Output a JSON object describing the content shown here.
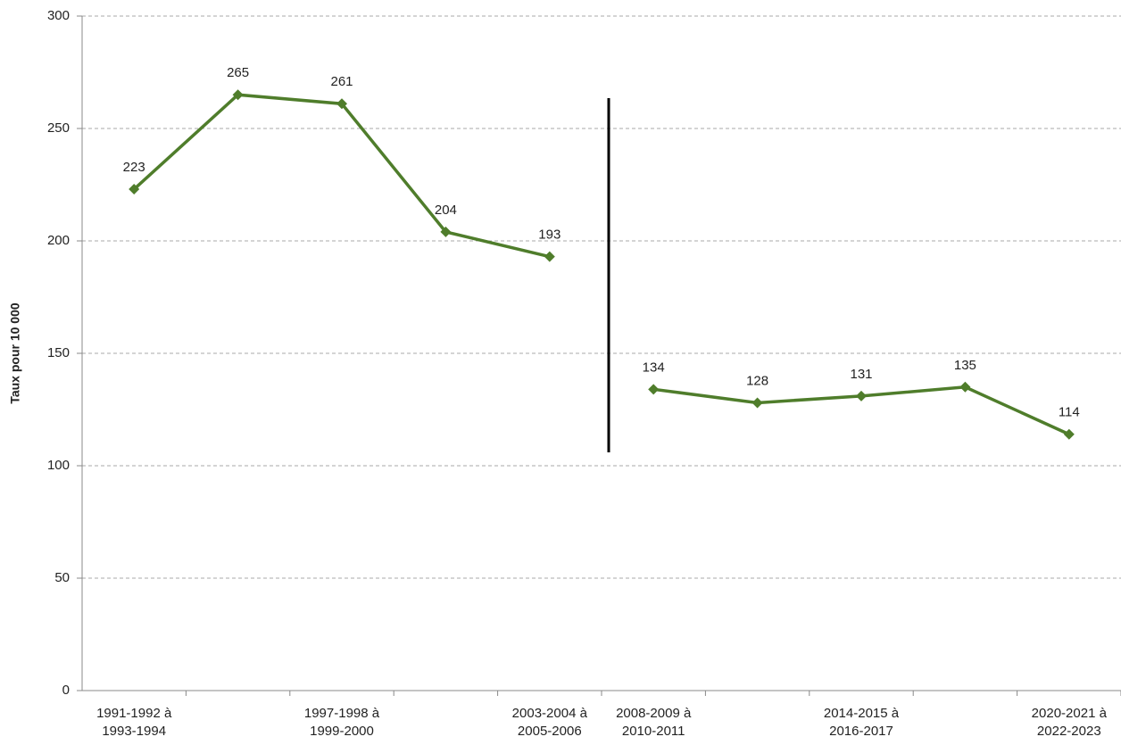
{
  "chart_data": {
    "type": "line",
    "y_label": "Taux pour 10 000",
    "categories": [
      "1991-1992 à\n1993-1994",
      null,
      "1997-1998 à\n1999-2000",
      null,
      "2003-2004 à\n2005-2006",
      "2008-2009 à\n2010-2011",
      null,
      "2014-2015 à\n2016-2017",
      null,
      "2020-2021 à\n2022-2023"
    ],
    "series": [
      {
        "color": "#4f7d2b",
        "values": [
          223,
          265,
          261,
          204,
          193,
          null,
          null,
          null,
          null,
          null
        ]
      },
      {
        "color": "#4f7d2b",
        "values": [
          null,
          null,
          null,
          null,
          null,
          134,
          128,
          131,
          135,
          114
        ]
      }
    ],
    "ylim": [
      0,
      300
    ],
    "yticks": [
      0,
      50,
      100,
      150,
      200,
      250,
      300
    ],
    "grid": true
  }
}
